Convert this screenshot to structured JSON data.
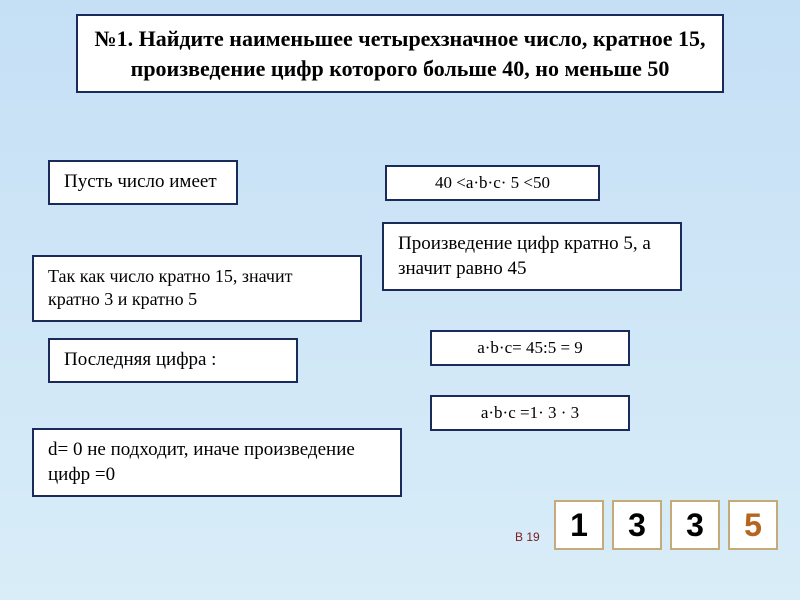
{
  "title": "№1. Найдите наименьшее четырехзначное число, кратное 15, произведение цифр которого больше 40, но меньше 50",
  "pust": "Пусть число имеет",
  "ineq": "40 <a·b·c· 5 <50",
  "tak": "Так как число кратно 15, значит кратно 3 и кратно 5",
  "proizv": "Произведение цифр кратно 5, а значит равно 45",
  "posled": "Последняя цифра :",
  "formula1": "a·b·c= 45:5 = 9",
  "formula2": "a·b·c =1· 3 · 3",
  "d0": "d= 0  не подходит, иначе произведение цифр =0",
  "b19": "В 19",
  "answer": {
    "d1": "1",
    "d2": "3",
    "d3": "3",
    "d4": "5"
  },
  "colors": {
    "border": "#1a2a5a",
    "bg_top": "#c5dff5",
    "bg_bottom": "#d9edf8",
    "digit_border": "#c5aa7a",
    "digit5_color": "#b5651d"
  }
}
